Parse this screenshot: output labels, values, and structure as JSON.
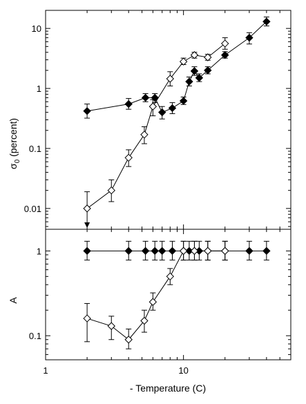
{
  "chart_data": [
    {
      "type": "scatter",
      "panel": "top",
      "ylabel": {
        "symbol": "σ",
        "subscript": "0",
        "text": " (percent)"
      },
      "xscale": "log",
      "yscale": "log",
      "xlim": [
        1,
        60
      ],
      "ylim": [
        0.0045,
        20
      ],
      "x_tick_labels": [
        "1",
        "10"
      ],
      "y_tick_labels": [
        "0.01",
        "0.1",
        "1",
        "10"
      ],
      "grid": false,
      "series": [
        {
          "marker": "filled-diamond",
          "color": "#000000",
          "x": [
            2,
            4,
            5.3,
            6.2,
            7,
            8.3,
            10,
            11,
            12,
            13,
            15,
            20,
            30,
            40
          ],
          "y": [
            0.42,
            0.55,
            0.7,
            0.7,
            0.4,
            0.47,
            0.62,
            1.3,
            1.95,
            1.5,
            2.0,
            3.6,
            7.0,
            13.0
          ],
          "yerr_low": [
            0.32,
            0.45,
            0.6,
            0.58,
            0.31,
            0.38,
            0.54,
            1.1,
            1.65,
            1.3,
            1.75,
            3.2,
            5.5,
            11.0
          ],
          "yerr_high": [
            0.55,
            0.68,
            0.82,
            0.82,
            0.5,
            0.58,
            0.72,
            1.55,
            2.3,
            1.75,
            2.3,
            4.1,
            8.5,
            15.5
          ]
        },
        {
          "marker": "open-diamond",
          "color": "#000000",
          "x": [
            2,
            3,
            4,
            5.2,
            6,
            8,
            10,
            12,
            15,
            20
          ],
          "y": [
            0.01,
            0.02,
            0.07,
            0.17,
            0.5,
            1.45,
            2.8,
            3.6,
            3.3,
            5.6
          ],
          "yerr_low": [
            0.005,
            0.013,
            0.05,
            0.12,
            0.35,
            1.1,
            2.5,
            3.2,
            2.95,
            4.5
          ],
          "yerr_high": [
            0.019,
            0.03,
            0.095,
            0.23,
            0.65,
            1.9,
            3.2,
            4.0,
            3.7,
            7.0
          ],
          "arrow_at_index": 0
        }
      ]
    },
    {
      "type": "scatter",
      "panel": "bottom",
      "ylabel": "A",
      "xlabel": "- Temperature (C)",
      "xscale": "log",
      "yscale": "log",
      "xlim": [
        1,
        60
      ],
      "ylim": [
        0.052,
        1.8
      ],
      "x_tick_labels": [
        "1",
        "10"
      ],
      "y_tick_labels": [
        "0.1",
        "1"
      ],
      "grid": false,
      "series": [
        {
          "marker": "filled-diamond",
          "color": "#000000",
          "x": [
            2,
            4,
            5.3,
            6.2,
            7,
            8.3,
            10,
            11,
            12,
            13,
            15,
            20,
            30,
            40
          ],
          "y": [
            1,
            1,
            1,
            1,
            1,
            1,
            1,
            1,
            1,
            1,
            1,
            1,
            1,
            1
          ],
          "yerr_low": [
            0.78,
            0.78,
            0.78,
            0.78,
            0.78,
            0.78,
            0.78,
            0.78,
            0.78,
            0.78,
            0.78,
            0.78,
            0.78,
            0.78
          ],
          "yerr_high": [
            1.3,
            1.3,
            1.3,
            1.3,
            1.3,
            1.3,
            1.3,
            1.3,
            1.3,
            1.3,
            1.3,
            1.3,
            1.3,
            1.3
          ]
        },
        {
          "marker": "open-diamond",
          "color": "#000000",
          "x": [
            2,
            3,
            4,
            5.2,
            6,
            8,
            10,
            12,
            15,
            20
          ],
          "y": [
            0.16,
            0.13,
            0.09,
            0.15,
            0.25,
            0.5,
            1,
            1,
            1,
            1
          ],
          "yerr_low": [
            0.085,
            0.09,
            0.07,
            0.11,
            0.2,
            0.4,
            0.78,
            0.78,
            0.78,
            0.78
          ],
          "yerr_high": [
            0.24,
            0.17,
            0.12,
            0.2,
            0.32,
            0.62,
            1.3,
            1.3,
            1.3,
            1.3
          ]
        }
      ]
    }
  ]
}
